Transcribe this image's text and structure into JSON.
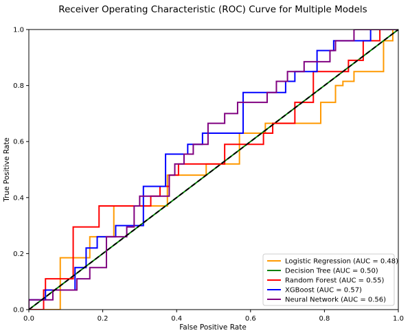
{
  "chart_data": {
    "type": "line",
    "title": "Receiver Operating Characteristic (ROC) Curve for Multiple Models",
    "xlabel": "False Positive Rate",
    "ylabel": "True Positive Rate",
    "xlim": [
      0,
      1
    ],
    "ylim": [
      0,
      1
    ],
    "xticks": [
      "0.0",
      "0.2",
      "0.4",
      "0.6",
      "0.8",
      "1.0"
    ],
    "yticks": [
      "0.0",
      "0.2",
      "0.4",
      "0.6",
      "0.8",
      "1.0"
    ],
    "grid": false,
    "legend_position": "lower-right",
    "diagonal_reference": {
      "x": [
        0,
        1
      ],
      "y": [
        0,
        1
      ],
      "color": "#000000",
      "style": "dashed"
    },
    "series": [
      {
        "name": "Logistic Regression (AUC = 0.48)",
        "color": "#ff9900",
        "x": [
          0,
          0,
          0.085,
          0.085,
          0.145,
          0.145,
          0.165,
          0.165,
          0.23,
          0.23,
          0.33,
          0.33,
          0.375,
          0.375,
          0.42,
          0.42,
          0.48,
          0.48,
          0.52,
          0.52,
          0.57,
          0.57,
          0.64,
          0.64,
          0.66,
          0.66,
          0.79,
          0.79,
          0.83,
          0.83,
          0.85,
          0.85,
          0.88,
          0.88,
          0.96,
          0.96,
          0.985,
          0.985,
          1
        ],
        "y": [
          0,
          0.0,
          0,
          0.185,
          0.185,
          0.185,
          0.185,
          0.26,
          0.26,
          0.37,
          0.37,
          0.37,
          0.37,
          0.48,
          0.48,
          0.48,
          0.48,
          0.52,
          0.52,
          0.52,
          0.52,
          0.63,
          0.63,
          0.665,
          0.665,
          0.665,
          0.665,
          0.74,
          0.74,
          0.8,
          0.8,
          0.815,
          0.815,
          0.85,
          0.85,
          0.96,
          0.96,
          1.0,
          1.0
        ]
      },
      {
        "name": "Decision Tree (AUC = 0.50)",
        "color": "#008000",
        "x": [
          0,
          1
        ],
        "y": [
          0,
          1
        ]
      },
      {
        "name": "Random Forest (AUC = 0.55)",
        "color": "#ff0000",
        "x": [
          0,
          0.04,
          0.04,
          0.045,
          0.045,
          0.12,
          0.12,
          0.19,
          0.19,
          0.33,
          0.33,
          0.355,
          0.355,
          0.38,
          0.38,
          0.405,
          0.405,
          0.53,
          0.53,
          0.635,
          0.635,
          0.66,
          0.66,
          0.72,
          0.72,
          0.77,
          0.77,
          0.865,
          0.865,
          0.905,
          0.905,
          0.95,
          0.95,
          1
        ],
        "y": [
          0,
          0,
          0.07,
          0.07,
          0.11,
          0.11,
          0.295,
          0.295,
          0.37,
          0.37,
          0.405,
          0.405,
          0.44,
          0.44,
          0.48,
          0.48,
          0.52,
          0.52,
          0.59,
          0.59,
          0.63,
          0.63,
          0.665,
          0.665,
          0.74,
          0.74,
          0.85,
          0.85,
          0.89,
          0.89,
          0.96,
          0.96,
          1.0,
          1.0
        ]
      },
      {
        "name": "XGBoost (AUC = 0.57)",
        "color": "#0000ff",
        "x": [
          0,
          0,
          0.045,
          0.045,
          0.125,
          0.125,
          0.155,
          0.155,
          0.185,
          0.185,
          0.235,
          0.235,
          0.31,
          0.31,
          0.37,
          0.37,
          0.43,
          0.43,
          0.47,
          0.47,
          0.58,
          0.58,
          0.695,
          0.695,
          0.72,
          0.72,
          0.78,
          0.78,
          0.825,
          0.825,
          0.865,
          0.865,
          0.925,
          0.925,
          1
        ],
        "y": [
          0,
          0.035,
          0.035,
          0.07,
          0.07,
          0.15,
          0.15,
          0.22,
          0.22,
          0.26,
          0.26,
          0.3,
          0.3,
          0.44,
          0.44,
          0.555,
          0.555,
          0.59,
          0.59,
          0.63,
          0.63,
          0.775,
          0.775,
          0.815,
          0.815,
          0.85,
          0.85,
          0.925,
          0.925,
          0.96,
          0.96,
          0.96,
          0.96,
          1.0,
          1.0
        ]
      },
      {
        "name": "Neural Network (AUC = 0.56)",
        "color": "#800080",
        "x": [
          0,
          0,
          0.065,
          0.065,
          0.13,
          0.13,
          0.165,
          0.165,
          0.21,
          0.21,
          0.265,
          0.265,
          0.285,
          0.285,
          0.3,
          0.3,
          0.38,
          0.38,
          0.395,
          0.395,
          0.42,
          0.42,
          0.445,
          0.445,
          0.485,
          0.485,
          0.53,
          0.53,
          0.565,
          0.565,
          0.605,
          0.605,
          0.645,
          0.645,
          0.67,
          0.67,
          0.7,
          0.7,
          0.745,
          0.745,
          0.77,
          0.77,
          0.815,
          0.815,
          0.83,
          0.83,
          0.88,
          0.88,
          0.91,
          0.91,
          1
        ],
        "y": [
          0,
          0.035,
          0.035,
          0.07,
          0.07,
          0.11,
          0.11,
          0.15,
          0.15,
          0.26,
          0.26,
          0.295,
          0.295,
          0.37,
          0.37,
          0.405,
          0.405,
          0.48,
          0.48,
          0.52,
          0.52,
          0.555,
          0.555,
          0.59,
          0.59,
          0.665,
          0.665,
          0.7,
          0.7,
          0.74,
          0.74,
          0.74,
          0.74,
          0.775,
          0.775,
          0.815,
          0.815,
          0.85,
          0.85,
          0.885,
          0.885,
          0.885,
          0.885,
          0.925,
          0.925,
          0.96,
          0.96,
          1.0,
          1.0,
          1.0,
          1.0
        ]
      }
    ]
  }
}
